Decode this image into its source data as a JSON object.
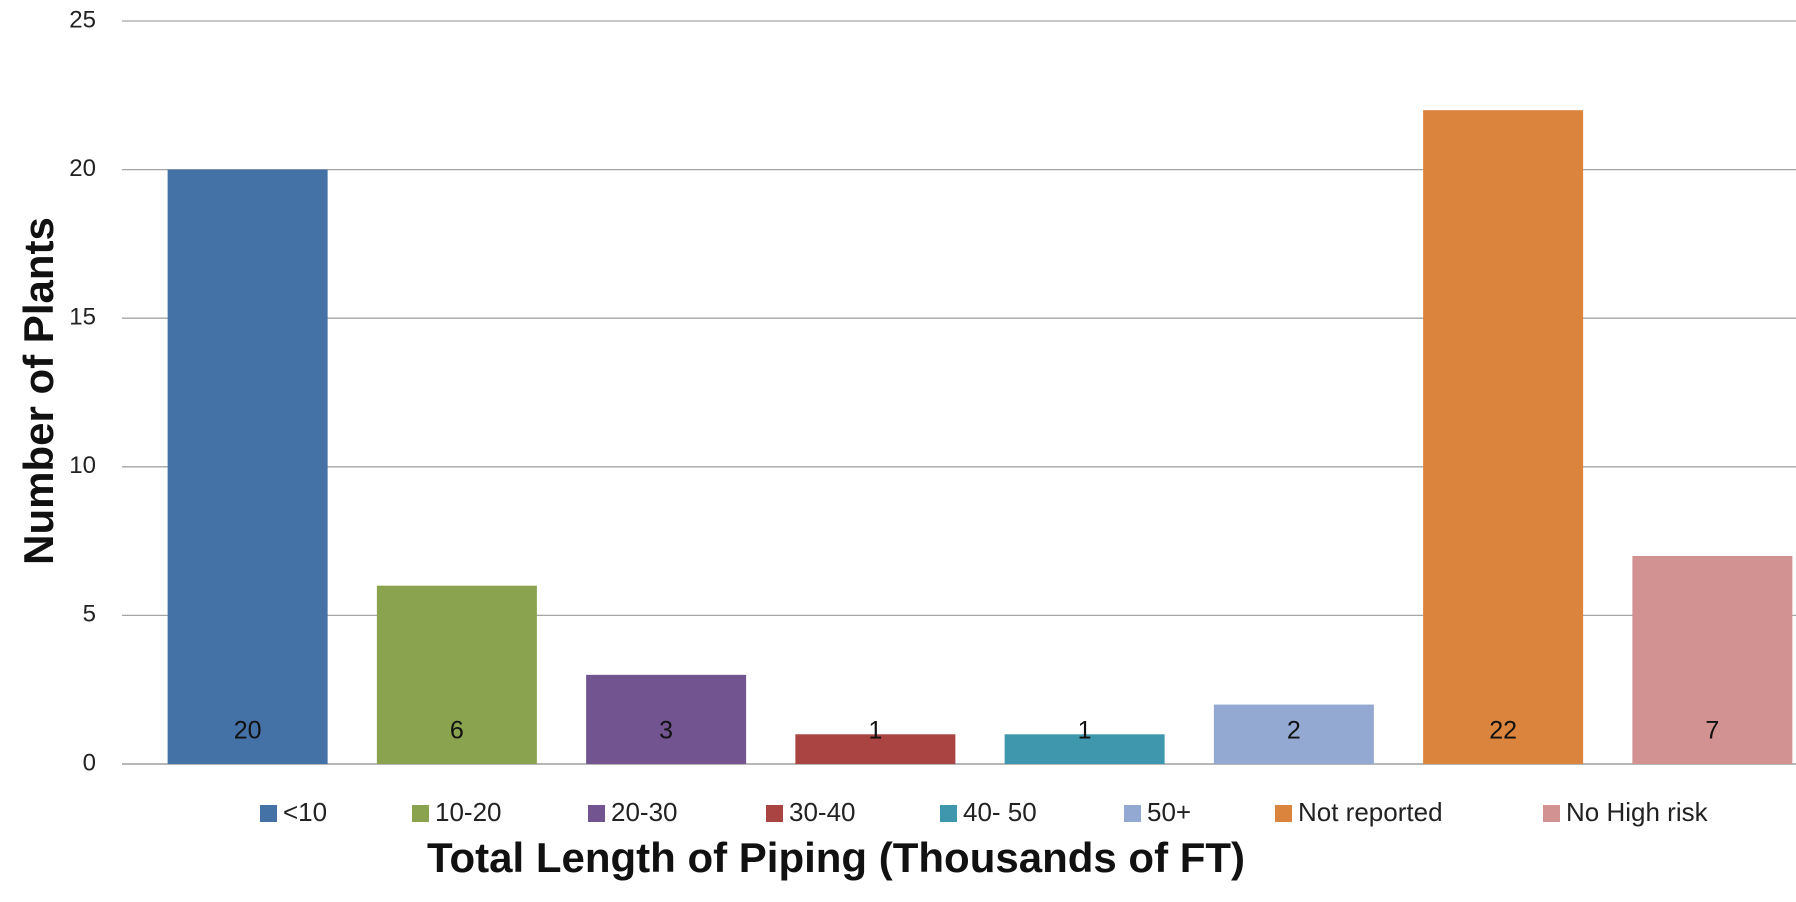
{
  "chart_data": {
    "type": "bar",
    "categories": [
      "<10",
      "10-20",
      "20-30",
      "30-40",
      "40- 50",
      "50+",
      "Not reported",
      "No High risk"
    ],
    "values": [
      20,
      6,
      3,
      1,
      1,
      2,
      22,
      7
    ],
    "colors": [
      "#4472a6",
      "#89a34e",
      "#725590",
      "#a94442",
      "#3f97ad",
      "#94a9d2",
      "#db843d",
      "#d29292"
    ],
    "xlabel": "Total Length  of Piping (Thousands of FT)",
    "ylabel": "Number of Plants",
    "ylim": [
      0,
      25
    ],
    "yticks": [
      0,
      5,
      10,
      15,
      20,
      25
    ],
    "grid": true,
    "legend_position": "bottom",
    "data_labels": true
  }
}
